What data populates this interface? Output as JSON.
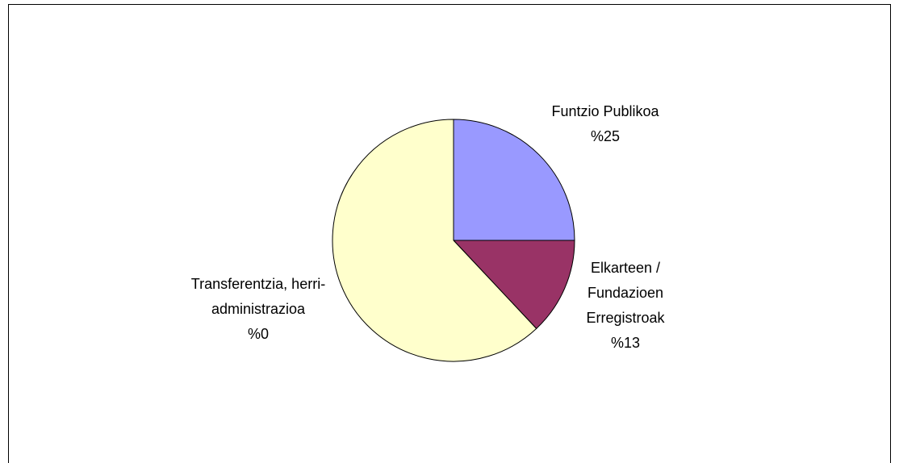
{
  "chart_data": {
    "type": "pie",
    "categories": [
      "Funtzio Publikoa",
      "Elkarteen / Fundazioen Erregistroak",
      "Transferentzia, herri-administrazioa",
      null
    ],
    "values": [
      25,
      13,
      0,
      62
    ],
    "value_labels": [
      "%25",
      "%13",
      "%0",
      null
    ],
    "colors": [
      "#9999ff",
      "#993366",
      "#ffffcc",
      "#ffffcc"
    ]
  }
}
